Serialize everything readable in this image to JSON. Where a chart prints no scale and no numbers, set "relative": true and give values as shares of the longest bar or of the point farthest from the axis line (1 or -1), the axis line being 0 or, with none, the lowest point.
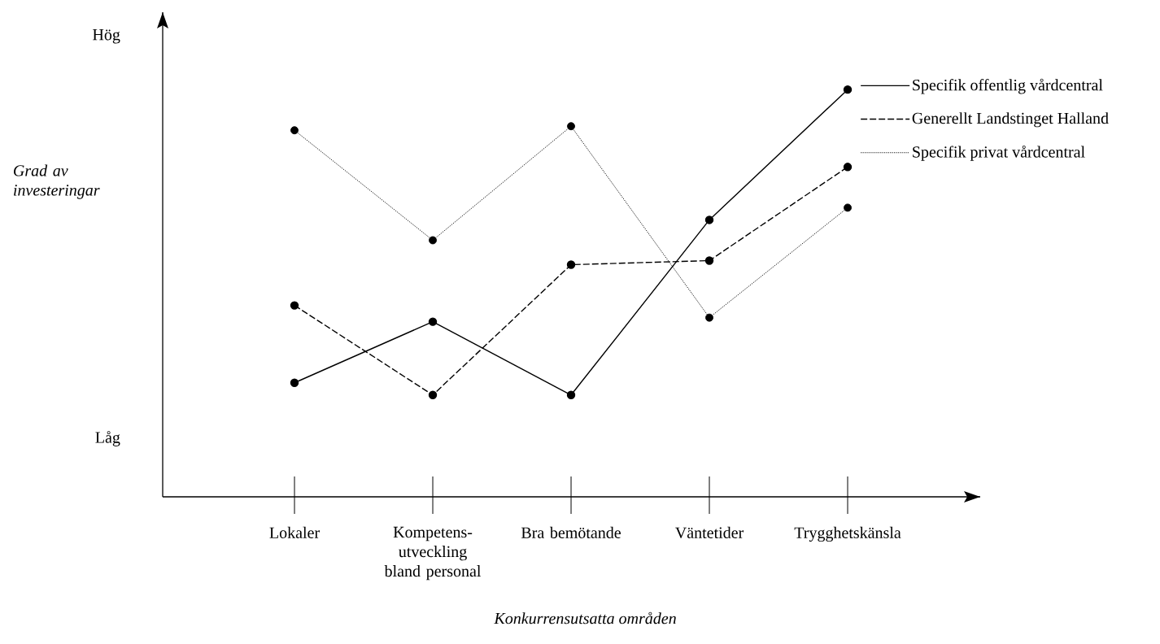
{
  "chart_data": {
    "type": "line",
    "relative": true,
    "xlabel": "Konkurrensutsatta områden",
    "ylabel": "Grad av investeringar",
    "annotations": [
      "Hög",
      "Låg"
    ],
    "categories": [
      "Lokaler",
      "Kompetens-utveckling bland personal",
      "Bra bemötande",
      "Väntetider",
      "Trygghetskänsla"
    ],
    "series": [
      {
        "name": "Specifik offentlig vårdcentral",
        "color": "#000000",
        "line_style": "solid",
        "values": [
          0.28,
          0.43,
          0.25,
          0.68,
          1
        ]
      },
      {
        "name": "Generellt Landstinget Halland",
        "color": "#000000",
        "line_style": "dashed",
        "values": [
          0.47,
          0.25,
          0.57,
          0.58,
          0.81
        ]
      },
      {
        "name": "Specifik privat vårdcentral",
        "color": "#000000",
        "line_style": "dotted",
        "values": [
          0.9,
          0.63,
          0.91,
          0.44,
          0.71
        ]
      }
    ],
    "marker": "circle",
    "legend": "right"
  }
}
